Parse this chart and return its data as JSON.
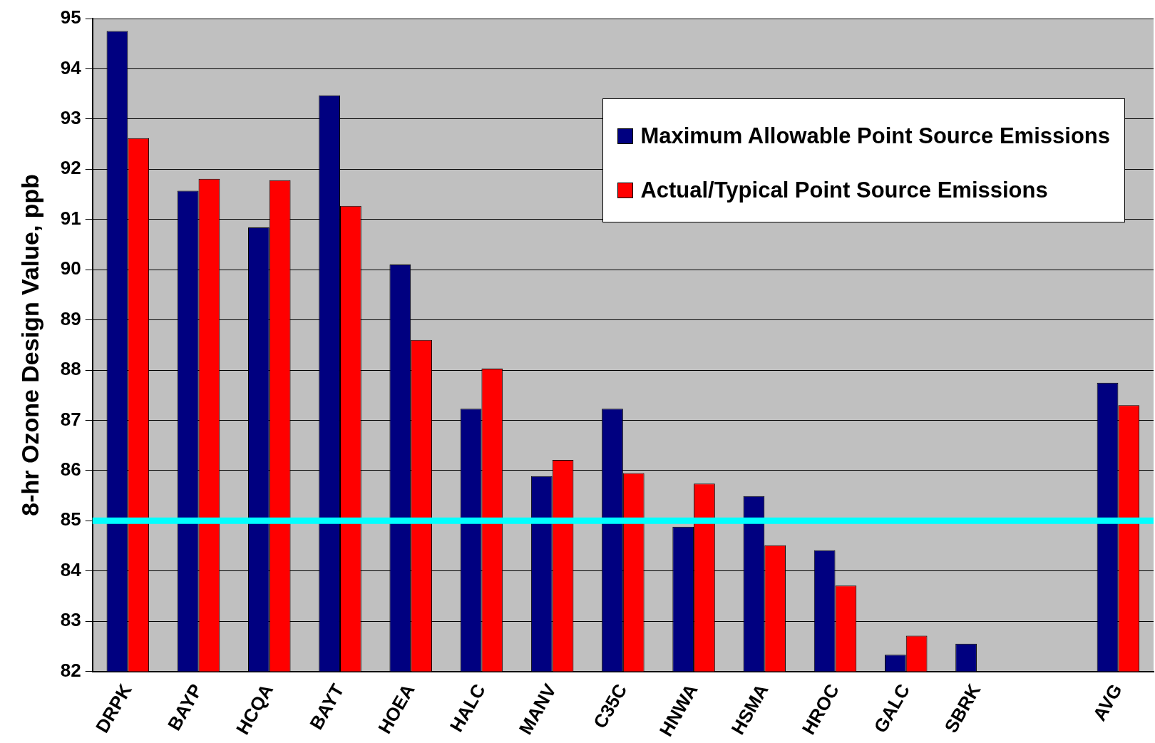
{
  "chart_data": {
    "type": "bar",
    "ylabel": "8-hr Ozone Design Value, ppb",
    "categories": [
      "DRPK",
      "BAYP",
      "HCQA",
      "BAYT",
      "HOEA",
      "HALC",
      "MANV",
      "C35C",
      "HNWA",
      "HSMA",
      "HROC",
      "GALC",
      "SBRK",
      null,
      "AVG"
    ],
    "series": [
      {
        "name": "Maximum Allowable Point Source Emissions",
        "color": "#000080",
        "values": [
          94.75,
          91.57,
          90.84,
          93.47,
          90.1,
          87.23,
          85.89,
          87.23,
          84.88,
          85.49,
          84.41,
          82.33,
          82.55,
          null,
          87.75
        ]
      },
      {
        "name": "Actual/Typical Point Source Emissions",
        "color": "#ff0000",
        "values": [
          92.62,
          91.81,
          91.78,
          91.27,
          88.6,
          88.03,
          86.21,
          85.95,
          85.74,
          84.51,
          83.71,
          82.71,
          null,
          null,
          87.3
        ]
      }
    ],
    "ylim": [
      82,
      95
    ],
    "yticks": [
      82,
      83,
      84,
      85,
      86,
      87,
      88,
      89,
      90,
      91,
      92,
      93,
      94,
      95
    ],
    "grid": "y",
    "legend": "top right",
    "ref_lines": [
      {
        "axis": "y",
        "value": 85,
        "color": "#00ffff"
      }
    ]
  }
}
